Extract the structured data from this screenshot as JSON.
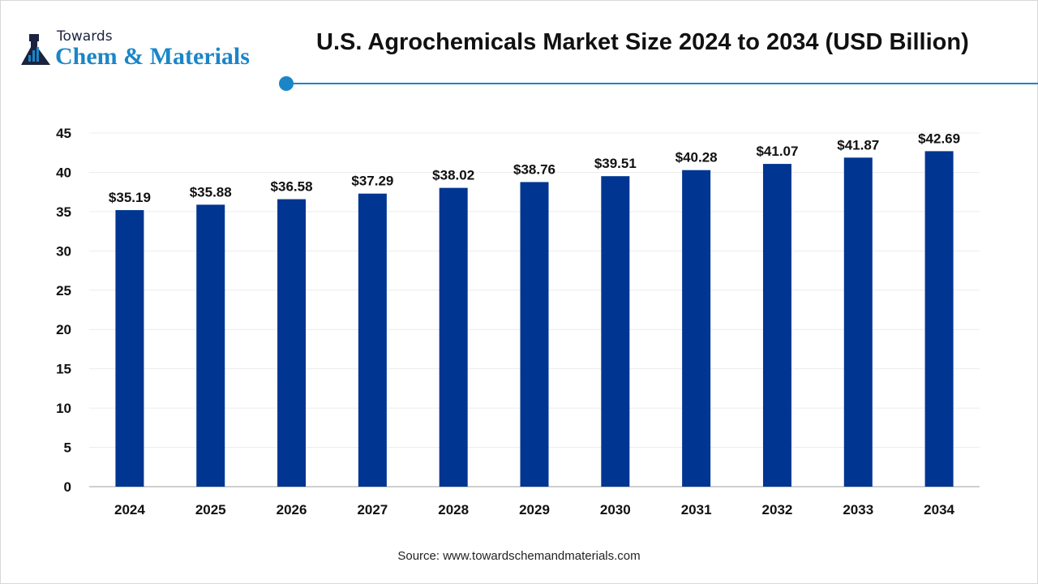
{
  "logo": {
    "line1": "Towards",
    "line2": "Chem & Materials"
  },
  "source": "Source: www.towardschemandmaterials.com",
  "colors": {
    "bar": "#003591",
    "accent": "#1a86c8"
  },
  "chart_data": {
    "type": "bar",
    "title": "U.S. Agrochemicals Market Size 2024 to 2034 (USD Billion)",
    "categories": [
      "2024",
      "2025",
      "2026",
      "2027",
      "2028",
      "2029",
      "2030",
      "2031",
      "2032",
      "2033",
      "2034"
    ],
    "values": [
      35.19,
      35.88,
      36.58,
      37.29,
      38.02,
      38.76,
      39.51,
      40.28,
      41.07,
      41.87,
      42.69
    ],
    "data_labels": [
      "$35.19",
      "$35.88",
      "$36.58",
      "$37.29",
      "$38.02",
      "$38.76",
      "$39.51",
      "$40.28",
      "$41.07",
      "$41.87",
      "$42.69"
    ],
    "yticks": [
      0,
      5,
      10,
      15,
      20,
      25,
      30,
      35,
      40,
      45
    ],
    "ylim": [
      0,
      45
    ],
    "xlabel": "",
    "ylabel": "",
    "grid": true,
    "legend": "none"
  }
}
